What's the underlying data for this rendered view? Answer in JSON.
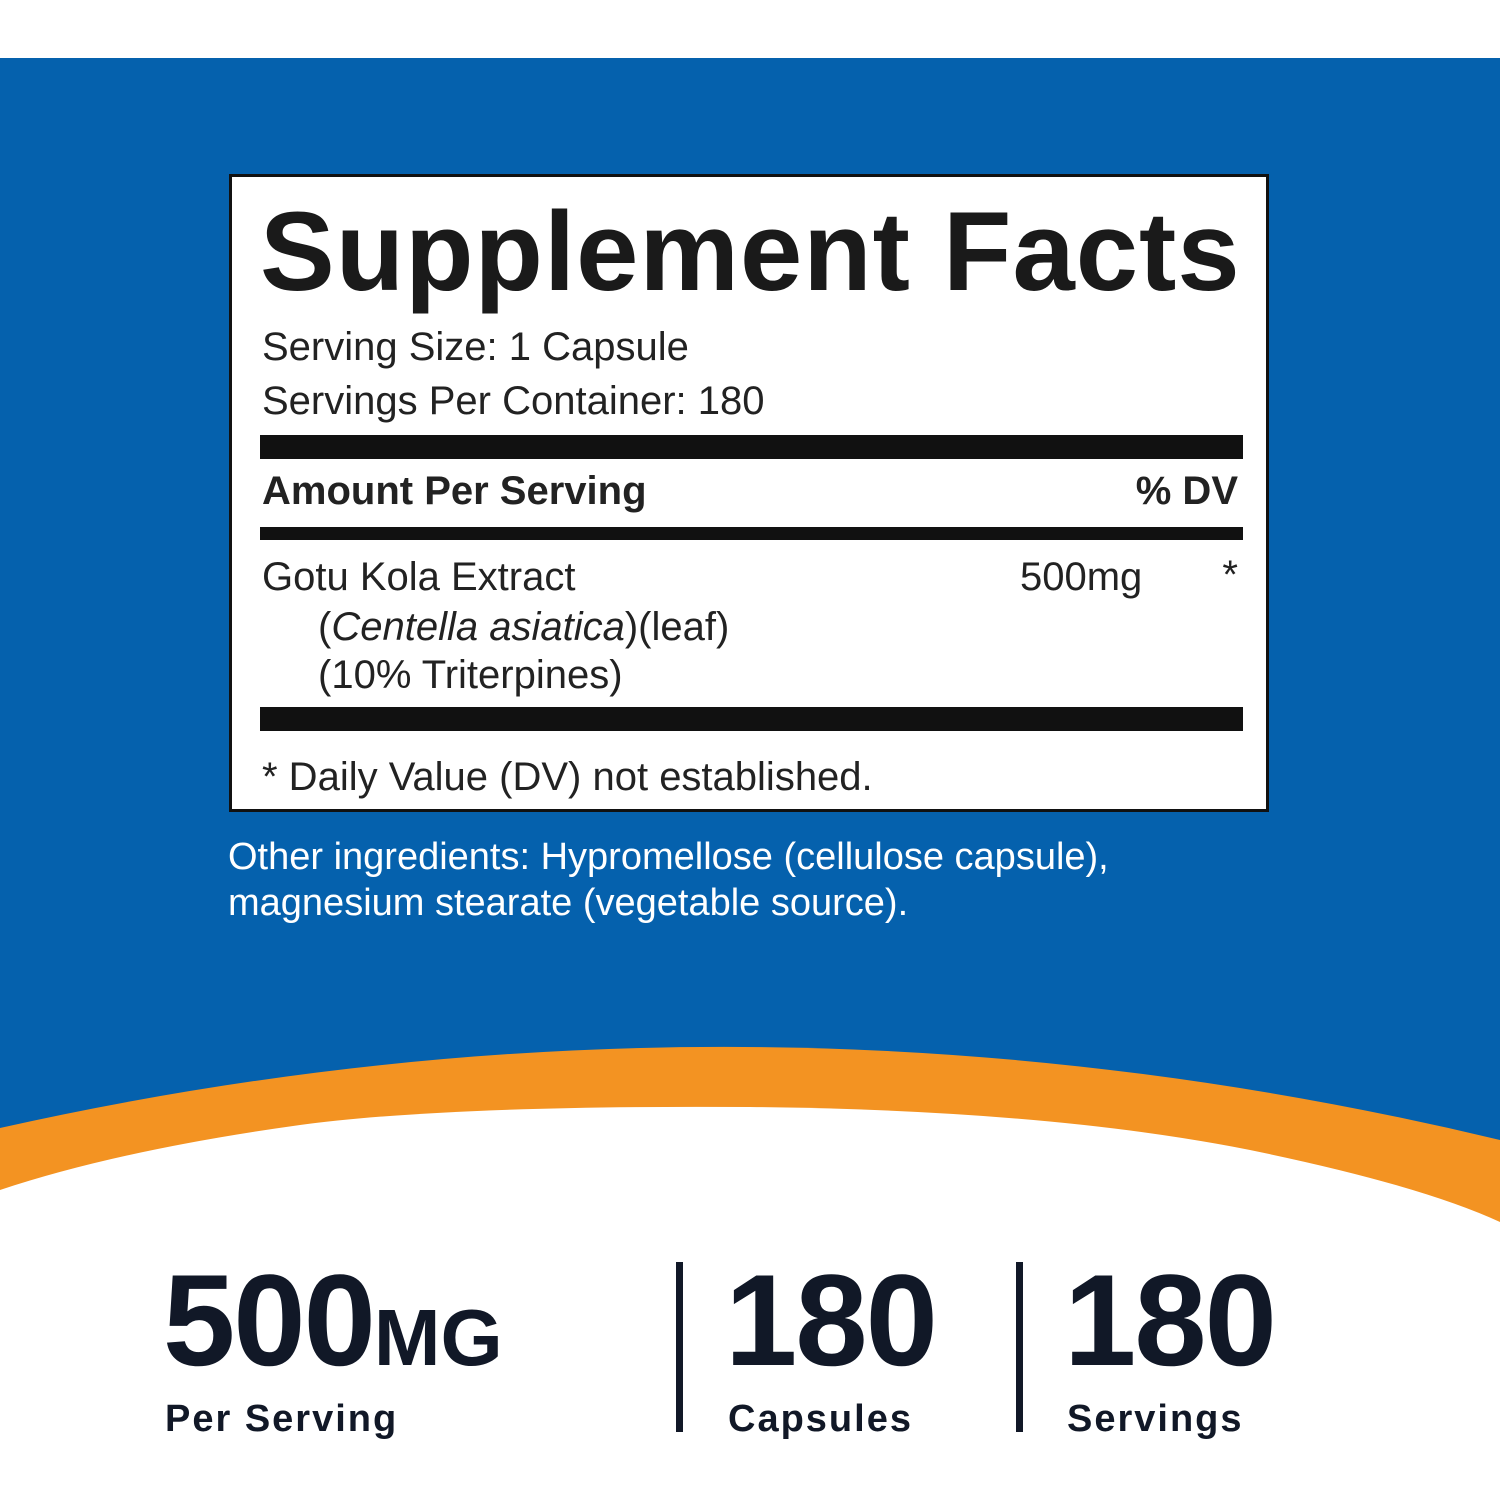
{
  "colors": {
    "blue": "#0561AD",
    "orange": "#F39322",
    "white": "#FFFFFF"
  },
  "facts": {
    "title": "Supplement Facts",
    "serving_size": "Serving Size: 1 Capsule",
    "servings_per_container": "Servings Per Container: 180",
    "amount_header": "Amount Per Serving",
    "dv_header": "% DV",
    "ingredient": {
      "name": "Gotu Kola Extract",
      "latin_open": "(",
      "latin": "Centella asiatica",
      "latin_close": ")(leaf)",
      "standardization": "(10% Triterpines)",
      "amount": "500mg",
      "dv": "*"
    },
    "footnote": "* Daily Value (DV) not established."
  },
  "other_ingredients": "Other ingredients: Hypromellose (cellulose capsule), magnesium stearate (vegetable source).",
  "highlights": [
    {
      "value": "500",
      "unit": "MG",
      "label": "Per Serving"
    },
    {
      "value": "180",
      "label": "Capsules"
    },
    {
      "value": "180",
      "label": "Servings"
    }
  ]
}
